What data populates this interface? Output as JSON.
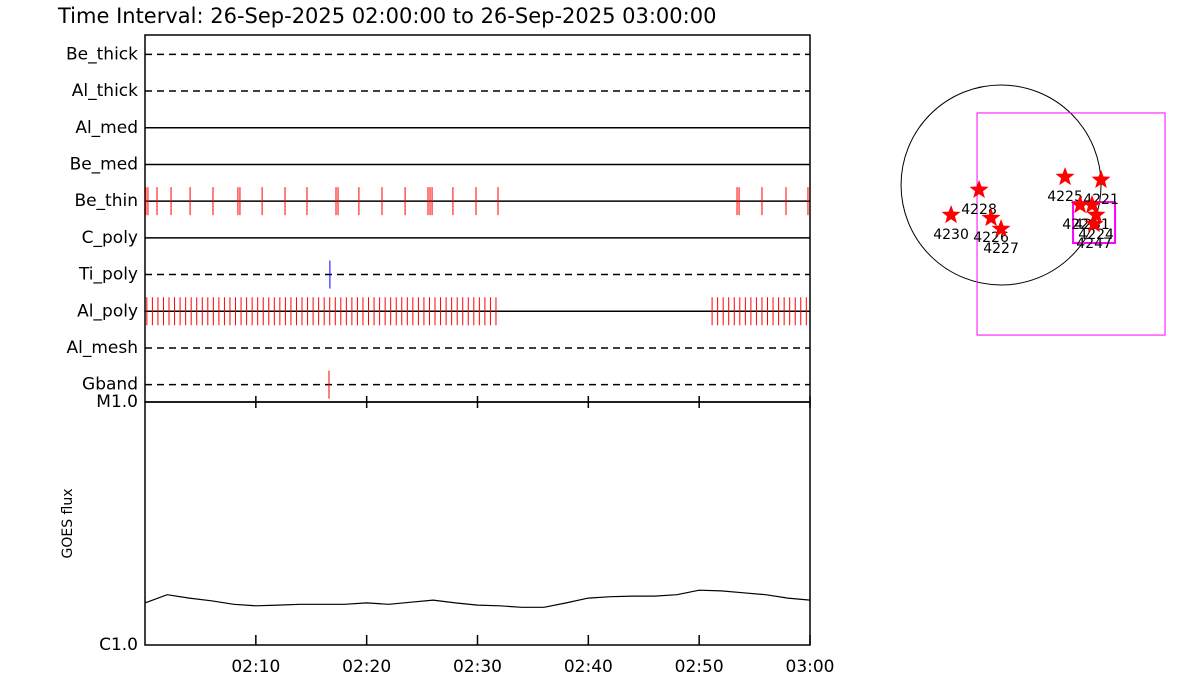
{
  "chart_data": [
    {
      "type": "timeline",
      "title": "Time Interval: 26-Sep-2025 02:00:00 to 26-Sep-2025 03:00:00",
      "xlim": [
        "02:00",
        "03:00"
      ],
      "rows": [
        {
          "name": "Be_thick",
          "style": "dashed",
          "color": "#ff0000",
          "events": []
        },
        {
          "name": "Al_thick",
          "style": "dashed",
          "color": "#ff0000",
          "events": []
        },
        {
          "name": "Al_med",
          "style": "solid",
          "color": "#ff0000",
          "events": []
        },
        {
          "name": "Be_med",
          "style": "solid",
          "color": "#ff0000",
          "events": []
        },
        {
          "name": "Be_thin",
          "style": "solid",
          "color": "#ff0000",
          "events": [
            "02:00:05",
            "02:00:16",
            "02:01:05",
            "02:02:21",
            "02:04:04",
            "02:06:08",
            "02:08:23",
            "02:08:34",
            "02:10:34",
            "02:12:38",
            "02:14:37",
            "02:17:14",
            "02:17:25",
            "02:19:18",
            "02:21:23",
            "02:23:28",
            "02:25:32",
            "02:25:43",
            "02:25:54",
            "02:27:47",
            "02:29:52",
            "02:31:51",
            "02:53:25",
            "02:53:36",
            "02:55:40",
            "02:57:50",
            "02:59:49"
          ]
        },
        {
          "name": "C_poly",
          "style": "solid",
          "color": "#ff0000",
          "events": []
        },
        {
          "name": "Ti_poly",
          "style": "dashed",
          "color": "#0000ff",
          "events": [
            "02:16:41"
          ]
        },
        {
          "name": "Al_poly",
          "style": "solid",
          "color": "#ff0000",
          "events": [
            "02:00:10",
            "02:00:40",
            "02:01:10",
            "02:01:40",
            "02:02:10",
            "02:02:40",
            "02:03:10",
            "02:03:40",
            "02:04:10",
            "02:04:40",
            "02:05:10",
            "02:05:40",
            "02:06:10",
            "02:06:40",
            "02:07:10",
            "02:07:40",
            "02:08:10",
            "02:08:40",
            "02:09:10",
            "02:09:40",
            "02:10:10",
            "02:10:40",
            "02:11:10",
            "02:11:40",
            "02:12:10",
            "02:12:40",
            "02:13:10",
            "02:13:40",
            "02:14:10",
            "02:14:40",
            "02:15:10",
            "02:15:40",
            "02:16:10",
            "02:16:40",
            "02:17:10",
            "02:17:40",
            "02:18:10",
            "02:18:40",
            "02:19:10",
            "02:19:40",
            "02:20:10",
            "02:20:40",
            "02:21:10",
            "02:21:40",
            "02:22:10",
            "02:22:40",
            "02:23:10",
            "02:23:40",
            "02:24:10",
            "02:24:40",
            "02:25:10",
            "02:25:40",
            "02:26:10",
            "02:26:40",
            "02:27:10",
            "02:27:40",
            "02:28:10",
            "02:28:40",
            "02:29:10",
            "02:29:40",
            "02:30:10",
            "02:30:40",
            "02:31:10",
            "02:31:40",
            "02:51:10",
            "02:51:40",
            "02:52:10",
            "02:52:40",
            "02:53:10",
            "02:53:40",
            "02:54:10",
            "02:54:40",
            "02:55:10",
            "02:55:40",
            "02:56:10",
            "02:56:40",
            "02:57:10",
            "02:57:40",
            "02:58:10",
            "02:58:40",
            "02:59:10",
            "02:59:40"
          ]
        },
        {
          "name": "Al_mesh",
          "style": "dashed",
          "color": "#ff0000",
          "events": []
        },
        {
          "name": "Gband",
          "style": "dashed",
          "color": "#ff0000",
          "events": [
            "02:16:36"
          ]
        }
      ]
    },
    {
      "type": "line",
      "y_label": "GOES flux",
      "log_scale": true,
      "color": "#000000",
      "xlim": [
        "02:00",
        "03:00"
      ],
      "xticks": [
        "02:10",
        "02:20",
        "02:30",
        "02:40",
        "02:50",
        "03:00"
      ],
      "ylim": [
        1e-06,
        1e-05
      ],
      "yticks": [
        {
          "value": 1e-06,
          "label": "C1.0"
        },
        {
          "value": 1e-05,
          "label": "M1.0"
        }
      ],
      "x": [
        "02:00",
        "02:02",
        "02:04",
        "02:06",
        "02:08",
        "02:10",
        "02:12",
        "02:14",
        "02:16",
        "02:18",
        "02:20",
        "02:22",
        "02:24",
        "02:26",
        "02:28",
        "02:30",
        "02:32",
        "02:34",
        "02:36",
        "02:38",
        "02:40",
        "02:42",
        "02:44",
        "02:46",
        "02:48",
        "02:50",
        "02:52",
        "02:54",
        "02:56",
        "02:58",
        "03:00"
      ],
      "values": [
        1.49e-06,
        1.61e-06,
        1.56e-06,
        1.52e-06,
        1.47e-06,
        1.45e-06,
        1.46e-06,
        1.47e-06,
        1.47e-06,
        1.47e-06,
        1.49e-06,
        1.47e-06,
        1.5e-06,
        1.53e-06,
        1.49e-06,
        1.46e-06,
        1.45e-06,
        1.43e-06,
        1.43e-06,
        1.49e-06,
        1.56e-06,
        1.58e-06,
        1.59e-06,
        1.59e-06,
        1.61e-06,
        1.68e-06,
        1.67e-06,
        1.64e-06,
        1.61e-06,
        1.56e-06,
        1.53e-06
      ]
    },
    {
      "type": "map",
      "xlim": [
        -1150,
        1795
      ],
      "ylim": [
        -1472,
        1092
      ],
      "disk_radius": 950,
      "fov_color": "#ff00ff",
      "marker_color": "#ff0000",
      "fovs": [
        {
          "x": [
            -228,
            1558
          ],
          "y": [
            -1425,
            684
          ]
        },
        {
          "x": [
            684,
            1083
          ],
          "y": [
            -551,
            -162
          ]
        }
      ],
      "regions": [
        {
          "label": "4228",
          "x": -209,
          "y": -47
        },
        {
          "label": "4230",
          "x": -475,
          "y": -285
        },
        {
          "label": "4226",
          "x": -95,
          "y": -314
        },
        {
          "label": "4227",
          "x": 0,
          "y": -418
        },
        {
          "label": "4225",
          "x": 608,
          "y": 76
        },
        {
          "label": "4221",
          "x": 950,
          "y": 48
        },
        {
          "label": "4229",
          "x": 751,
          "y": -190
        },
        {
          "label": "4231",
          "x": 864,
          "y": -190
        },
        {
          "label": "4224",
          "x": 903,
          "y": -285
        },
        {
          "label": "4247",
          "x": 884,
          "y": -371
        }
      ]
    }
  ]
}
